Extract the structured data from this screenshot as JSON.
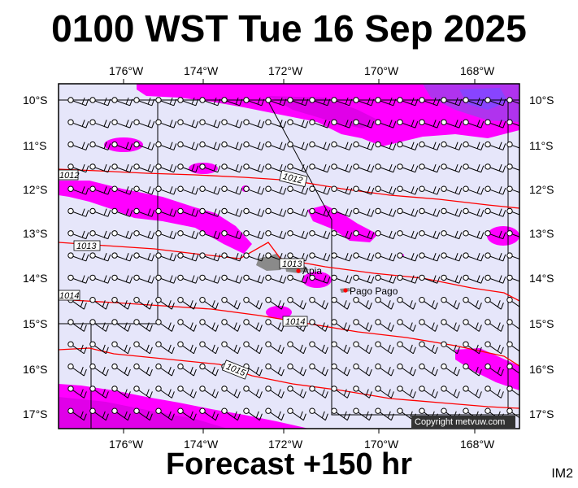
{
  "title": "0100 WST Tue 16 Sep 2025",
  "footer": "Forecast +150 hr",
  "image_tag": "IM2",
  "copyright": "Copyright metvuw.com",
  "map": {
    "longitude_labels": [
      "176°W",
      "174°W",
      "172°W",
      "170°W",
      "168°W"
    ],
    "latitude_labels": [
      "10°S",
      "11°S",
      "12°S",
      "13°S",
      "14°S",
      "15°S",
      "16°S",
      "17°S"
    ],
    "isobar_labels": [
      "1012",
      "1012",
      "1013",
      "1013",
      "1014",
      "1014",
      "1015"
    ],
    "places": [
      "Apia",
      "Pago Pago"
    ],
    "colors": {
      "sea": "#e6e6fa",
      "rain_light": "#ff00ff",
      "rain_medium": "#dd22ee",
      "rain_heavy": "#8844ff",
      "land": "#8a8a8a",
      "isobar": "#ff0000",
      "place_marker": "#ff0000"
    }
  }
}
